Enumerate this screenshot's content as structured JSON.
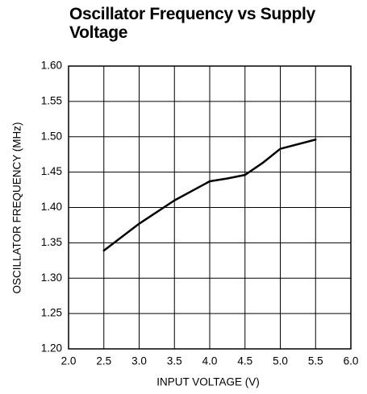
{
  "chart_data": {
    "type": "line",
    "title": "Oscillator Frequency vs Supply Voltage",
    "x_label": "INPUT VOLTAGE (V)",
    "y_label": "OSCILLATOR FREQUENCY (MHz)",
    "x": [
      2.5,
      3.0,
      3.5,
      4.0,
      4.25,
      4.5,
      4.75,
      5.0,
      5.5
    ],
    "values": [
      1.339,
      1.377,
      1.41,
      1.437,
      1.441,
      1.446,
      1.463,
      1.483,
      1.496
    ],
    "color": "#000000",
    "xlim": [
      2.0,
      6.0
    ],
    "xticks": [
      {
        "value": 2.0,
        "label": "2.0"
      },
      2.5,
      {
        "value": 3.0,
        "label": "3.0"
      },
      3.5,
      {
        "value": 4.0,
        "label": "4.0"
      },
      4.5,
      {
        "value": 5.0,
        "label": "5.0"
      },
      5.5,
      {
        "value": 6.0,
        "label": "6.0"
      }
    ],
    "ylim": [
      1.2,
      1.6
    ],
    "yticks": [
      {
        "value": 1.2,
        "label": "1.20"
      },
      1.25,
      {
        "value": 1.3,
        "label": "1.30"
      },
      1.35,
      {
        "value": 1.4,
        "label": "1.40"
      },
      1.45,
      {
        "value": 1.5,
        "label": "1.50"
      },
      1.55,
      {
        "value": 1.6,
        "label": "1.60"
      }
    ],
    "grid": true
  }
}
